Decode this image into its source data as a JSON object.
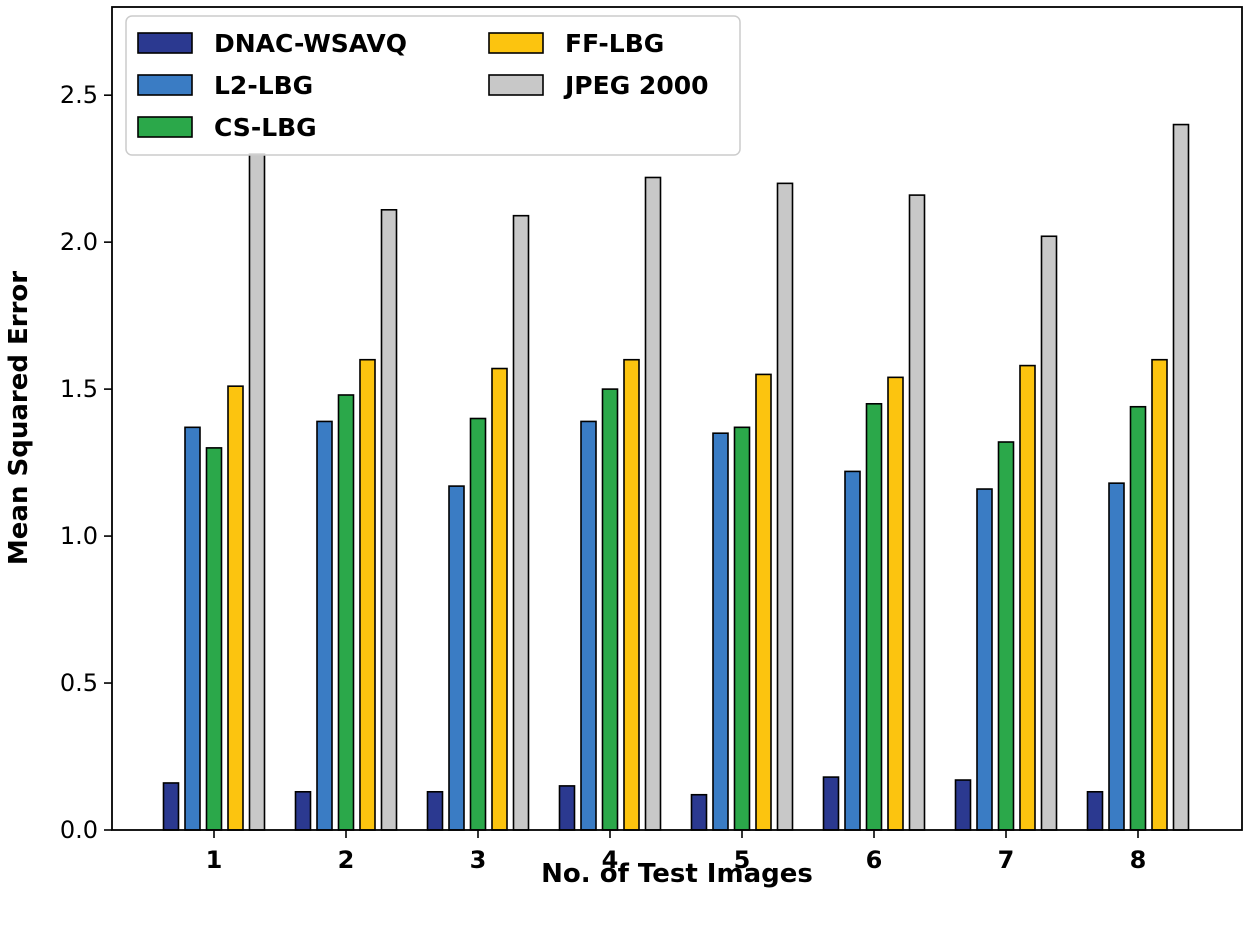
{
  "chart_data": {
    "type": "bar",
    "title": "",
    "xlabel": "No. of Test Images",
    "ylabel": "Mean Squared Error",
    "categories": [
      "1",
      "2",
      "3",
      "4",
      "5",
      "6",
      "7",
      "8"
    ],
    "ylim": [
      0,
      2.8
    ],
    "yticks": [
      0.0,
      0.5,
      1.0,
      1.5,
      2.0,
      2.5
    ],
    "ytick_labels": [
      "0.0",
      "0.5",
      "1.0",
      "1.5",
      "2.0",
      "2.5"
    ],
    "grid": false,
    "legend_position": "top-left",
    "series": [
      {
        "name": "DNAC-WSAVQ",
        "color": "#2b3990",
        "values": [
          0.16,
          0.13,
          0.13,
          0.15,
          0.12,
          0.18,
          0.17,
          0.13
        ]
      },
      {
        "name": "L2-LBG",
        "color": "#3a7cc4",
        "values": [
          1.37,
          1.39,
          1.17,
          1.39,
          1.35,
          1.22,
          1.16,
          1.18
        ]
      },
      {
        "name": "CS-LBG",
        "color": "#2ba84a",
        "values": [
          1.3,
          1.48,
          1.4,
          1.5,
          1.37,
          1.45,
          1.32,
          1.44
        ]
      },
      {
        "name": "FF-LBG",
        "color": "#fcc40f",
        "values": [
          1.51,
          1.6,
          1.57,
          1.6,
          1.55,
          1.54,
          1.58,
          1.6
        ]
      },
      {
        "name": "JPEG 2000",
        "color": "#c8c8c8",
        "values": [
          2.3,
          2.11,
          2.09,
          2.22,
          2.2,
          2.16,
          2.02,
          2.4
        ]
      }
    ]
  }
}
